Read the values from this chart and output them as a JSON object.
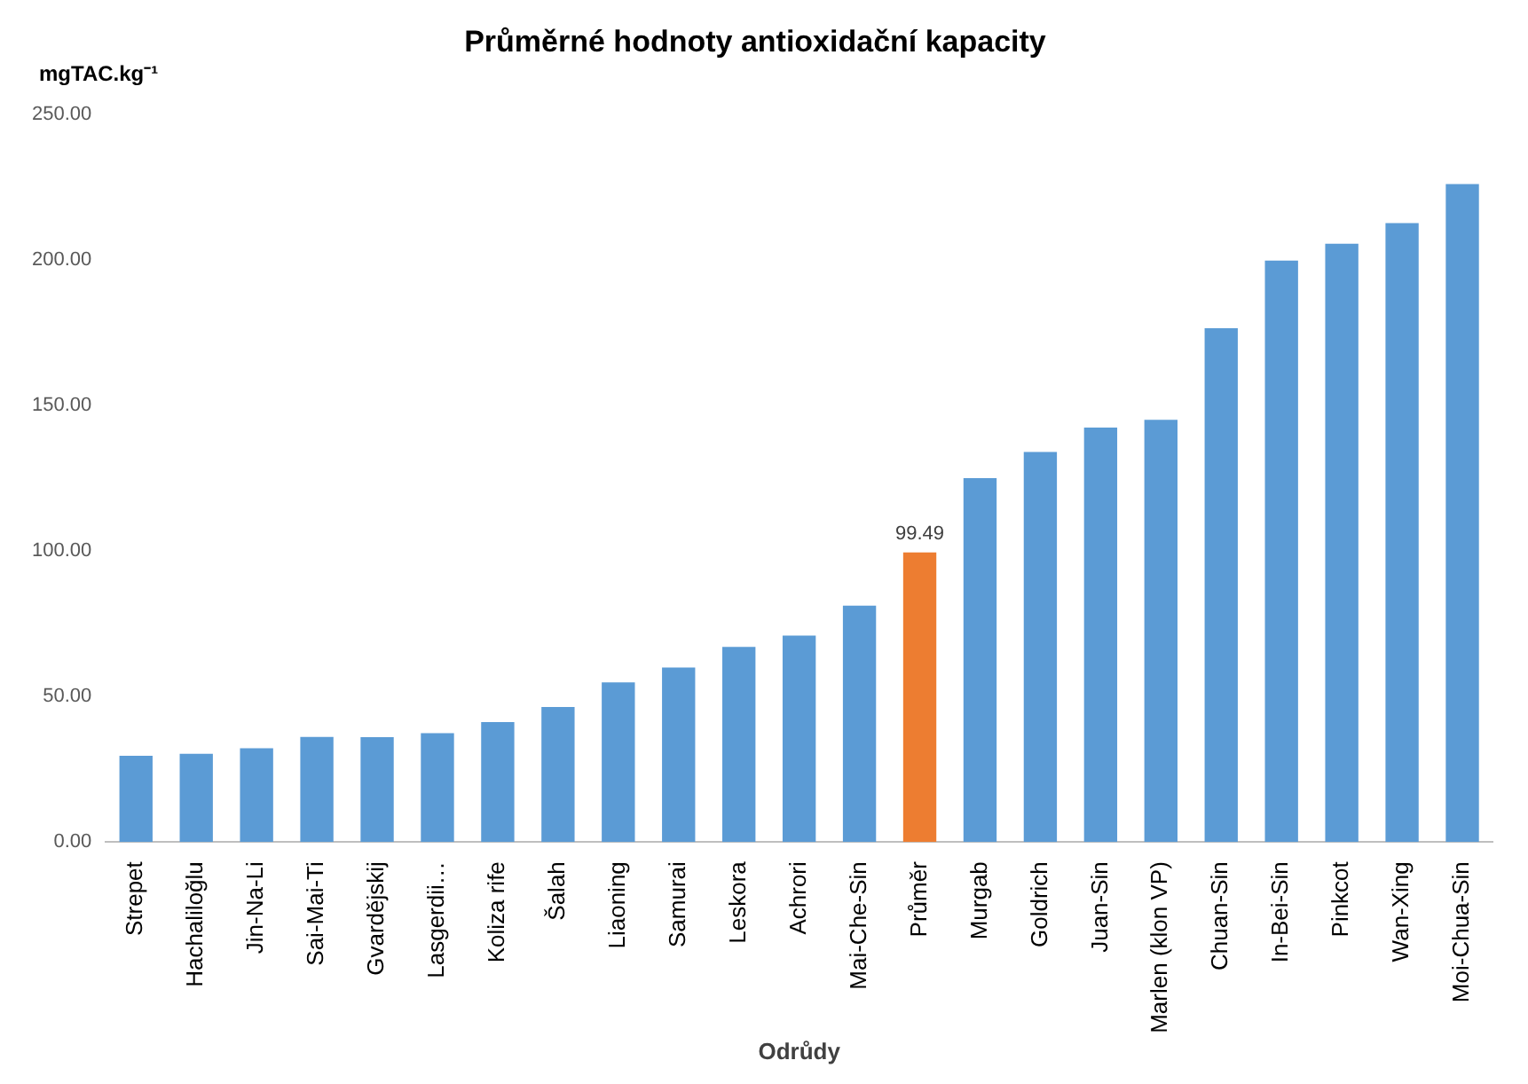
{
  "chart_data": {
    "type": "bar",
    "title": "Průměrné hodnoty antioxidační kapacity",
    "xlabel": "Odrůdy",
    "ylabel": "mgTAC.kg⁻¹",
    "categories": [
      "Strepet",
      "Hachaliloğlu",
      "Jin-Na-Li",
      "Sai-Mai-Ti",
      "Gvardějskij",
      "Lasgerdii…",
      "Koliza rife",
      "Šalah",
      "Liaoning",
      "Samurai",
      "Leskora",
      "Achrori",
      "Mai-Che-Sin",
      "Průměr",
      "Murgab",
      "Goldrich",
      "Juan-Sin",
      "Marlen (klon VP)",
      "Chuan-Sin",
      "In-Bei-Sin",
      "Pinkcot",
      "Wan-Xing",
      "Moi-Chua-Sin"
    ],
    "values": [
      29.6,
      30.3,
      32.2,
      36.1,
      36,
      37.4,
      41.2,
      46.4,
      54.8,
      59.9,
      67,
      70.9,
      81.2,
      99.49,
      125,
      134,
      142.4,
      145,
      176.5,
      199.7,
      205.5,
      212.6,
      226
    ],
    "colors": [
      "#5b9bd5",
      "#5b9bd5",
      "#5b9bd5",
      "#5b9bd5",
      "#5b9bd5",
      "#5b9bd5",
      "#5b9bd5",
      "#5b9bd5",
      "#5b9bd5",
      "#5b9bd5",
      "#5b9bd5",
      "#5b9bd5",
      "#5b9bd5",
      "#ed7d31",
      "#5b9bd5",
      "#5b9bd5",
      "#5b9bd5",
      "#5b9bd5",
      "#5b9bd5",
      "#5b9bd5",
      "#5b9bd5",
      "#5b9bd5",
      "#5b9bd5"
    ],
    "value_labels": [
      null,
      null,
      null,
      null,
      null,
      null,
      null,
      null,
      null,
      null,
      null,
      null,
      null,
      "99.49",
      null,
      null,
      null,
      null,
      null,
      null,
      null,
      null,
      null
    ],
    "ylim": [
      0,
      250
    ],
    "yticks": [
      {
        "value": 0,
        "label": "0.00"
      },
      {
        "value": 50,
        "label": "50.00"
      },
      {
        "value": 100,
        "label": "100.00"
      },
      {
        "value": 150,
        "label": "150.00"
      },
      {
        "value": 200,
        "label": "200.00"
      },
      {
        "value": 250,
        "label": "250.00"
      }
    ]
  }
}
